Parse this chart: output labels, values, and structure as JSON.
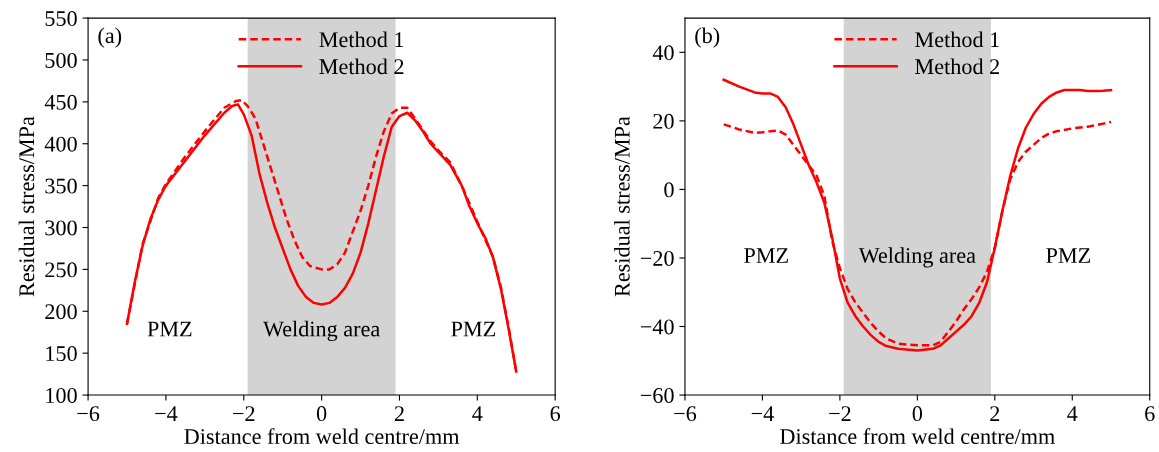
{
  "chart_data": [
    {
      "type": "line",
      "xlabel": "Distance from weld centre/mm",
      "ylabel": "Residual stress/MPa",
      "xlim": [
        -6,
        6
      ],
      "xticks": [
        {
          "value": -6,
          "label": "−6"
        },
        {
          "value": -4,
          "label": "−4"
        },
        {
          "value": -2,
          "label": "−2"
        },
        0,
        2,
        4,
        6
      ],
      "ylim": [
        100,
        550
      ],
      "yticks": [
        100,
        150,
        200,
        250,
        300,
        350,
        400,
        450,
        500,
        550
      ],
      "legend": "top",
      "grid": false,
      "bands": [
        {
          "axis": "x",
          "from": -1.9,
          "to": 1.9,
          "label": "Welding area",
          "color": "#d3d3d3"
        }
      ],
      "annotations": [
        "(a)",
        "PMZ",
        "PMZ"
      ],
      "series": [
        {
          "name": "Method 1",
          "color": "#ff0000",
          "line_style": "dashed",
          "x": [
            -5,
            -4.6,
            -4.2,
            -4,
            -3.5,
            -3,
            -2.5,
            -2.2,
            -2.05,
            -1.9,
            -1.7,
            -1.5,
            -1.3,
            -1.1,
            -0.9,
            -0.7,
            -0.5,
            -0.3,
            0,
            0.2,
            0.4,
            0.6,
            0.8,
            1,
            1.2,
            1.4,
            1.6,
            1.8,
            2,
            2.2,
            2.4,
            2.8,
            3,
            3.3,
            3.6,
            4,
            4.4,
            4.6,
            4.8,
            5
          ],
          "values": [
            185,
            280,
            335,
            352,
            385,
            415,
            443,
            451,
            452,
            445,
            430,
            400,
            370,
            340,
            310,
            285,
            265,
            254,
            250,
            250,
            256,
            270,
            295,
            320,
            350,
            385,
            415,
            436,
            443,
            443,
            430,
            403,
            392,
            378,
            350,
            307,
            265,
            230,
            182,
            128
          ]
        },
        {
          "name": "Method 2",
          "color": "#ff0000",
          "line_style": "solid",
          "x": [
            -5,
            -4.8,
            -4.6,
            -4.4,
            -4.2,
            -4,
            -3.5,
            -3,
            -2.5,
            -2.3,
            -2.15,
            -2,
            -1.8,
            -1.6,
            -1.4,
            -1.2,
            -1,
            -0.8,
            -0.6,
            -0.4,
            -0.2,
            0,
            0.2,
            0.4,
            0.6,
            0.8,
            1,
            1.2,
            1.4,
            1.6,
            1.8,
            2,
            2.2,
            2.4,
            2.6,
            2.8,
            3,
            3.3,
            3.6,
            3.8,
            4,
            4.2,
            4.4,
            4.6,
            4.8,
            5
          ],
          "values": [
            185,
            235,
            278,
            310,
            333,
            350,
            380,
            410,
            437,
            445,
            447,
            435,
            410,
            365,
            330,
            300,
            275,
            250,
            230,
            217,
            210,
            208,
            210,
            217,
            228,
            245,
            270,
            305,
            345,
            385,
            420,
            433,
            437,
            428,
            415,
            400,
            390,
            375,
            350,
            325,
            305,
            288,
            265,
            228,
            180,
            128
          ]
        }
      ]
    },
    {
      "type": "line",
      "xlabel": "Distance from weld centre/mm",
      "ylabel": "Residual stress/MPa",
      "xlim": [
        -6,
        6
      ],
      "xticks": [
        {
          "value": -6,
          "label": "−6"
        },
        {
          "value": -4,
          "label": "−4"
        },
        {
          "value": -2,
          "label": "−2"
        },
        0,
        2,
        4,
        6
      ],
      "ylim": [
        -60,
        50
      ],
      "yticks": [
        {
          "value": -60,
          "label": "−60"
        },
        {
          "value": -40,
          "label": "−40"
        },
        {
          "value": -20,
          "label": "−20"
        },
        0,
        20,
        40
      ],
      "legend": "top",
      "grid": false,
      "bands": [
        {
          "axis": "x",
          "from": -1.9,
          "to": 1.9,
          "label": "Welding area",
          "color": "#d3d3d3"
        }
      ],
      "annotations": [
        "(b)",
        "PMZ",
        "PMZ"
      ],
      "series": [
        {
          "name": "Method 1",
          "color": "#ff0000",
          "line_style": "dashed",
          "x": [
            -5,
            -4.6,
            -4.2,
            -4,
            -3.8,
            -3.6,
            -3.4,
            -3.2,
            -3,
            -2.8,
            -2.6,
            -2.4,
            -2.2,
            -2,
            -1.8,
            -1.6,
            -1.4,
            -1.2,
            -1,
            -0.8,
            -0.5,
            0,
            0.4,
            0.6,
            0.8,
            1,
            1.2,
            1.4,
            1.6,
            1.8,
            2,
            2.2,
            2.4,
            2.6,
            2.8,
            3,
            3.2,
            3.4,
            3.6,
            4,
            4.4,
            4.8,
            5
          ],
          "values": [
            19,
            17.5,
            16.5,
            16.7,
            17,
            17.2,
            16,
            13,
            10,
            7,
            4,
            -2,
            -15,
            -23,
            -29,
            -33,
            -36,
            -39,
            -41.5,
            -43.5,
            -45,
            -45.5,
            -45.5,
            -44.5,
            -41.5,
            -38.5,
            -35,
            -32,
            -28.5,
            -24,
            -17,
            -6,
            3,
            8,
            11,
            13,
            15,
            16.3,
            17,
            17.8,
            18.3,
            19.2,
            19.7
          ]
        },
        {
          "name": "Method 2",
          "color": "#ff0000",
          "line_style": "solid",
          "x": [
            -5,
            -4.6,
            -4.2,
            -4,
            -3.8,
            -3.6,
            -3.4,
            -3.2,
            -3,
            -2.8,
            -2.6,
            -2.4,
            -2.2,
            -2,
            -1.8,
            -1.6,
            -1.4,
            -1.2,
            -1,
            -0.8,
            -0.5,
            0,
            0.4,
            0.6,
            0.8,
            1,
            1.2,
            1.4,
            1.6,
            1.8,
            2,
            2.2,
            2.4,
            2.6,
            2.8,
            3,
            3.2,
            3.4,
            3.6,
            3.8,
            4,
            4.2,
            4.4,
            4.6,
            4.8,
            5
          ],
          "values": [
            32,
            30,
            28.3,
            28,
            28,
            27,
            24,
            19,
            13,
            7,
            2,
            -4,
            -14,
            -26,
            -33,
            -37,
            -40,
            -42.5,
            -44.5,
            -45.7,
            -46.5,
            -47,
            -46.5,
            -45.5,
            -43.5,
            -41.5,
            -39.5,
            -37,
            -33,
            -27,
            -17,
            -6,
            4,
            12,
            18,
            22,
            25,
            27,
            28.3,
            29,
            29,
            29,
            28.7,
            28.7,
            28.8,
            29
          ]
        }
      ]
    }
  ]
}
